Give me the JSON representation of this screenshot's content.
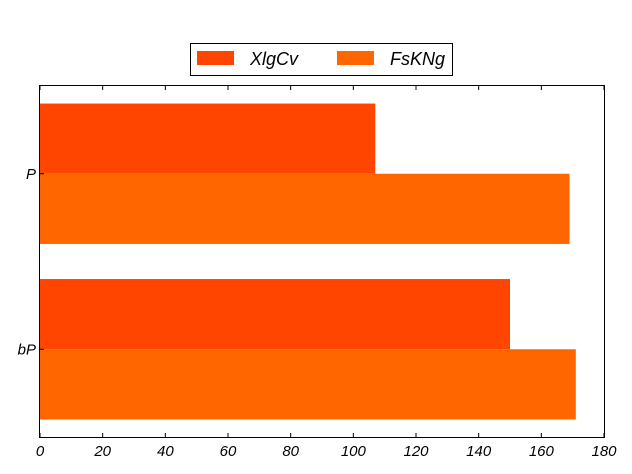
{
  "chart_data": {
    "type": "bar",
    "orientation": "horizontal",
    "title": "",
    "xlabel": "",
    "ylabel": "",
    "categories": [
      "bP",
      "P"
    ],
    "series": [
      {
        "name": "XlgCv",
        "values": [
          150,
          107
        ],
        "color": "#ff4500"
      },
      {
        "name": "FsKNg",
        "values": [
          171,
          169
        ],
        "color": "#ff6600"
      }
    ],
    "xlim": [
      0,
      180
    ],
    "xticks": [
      0,
      20,
      40,
      60,
      80,
      100,
      120,
      140,
      160,
      180
    ],
    "grid": false,
    "legend": {
      "position": "top-center"
    }
  }
}
